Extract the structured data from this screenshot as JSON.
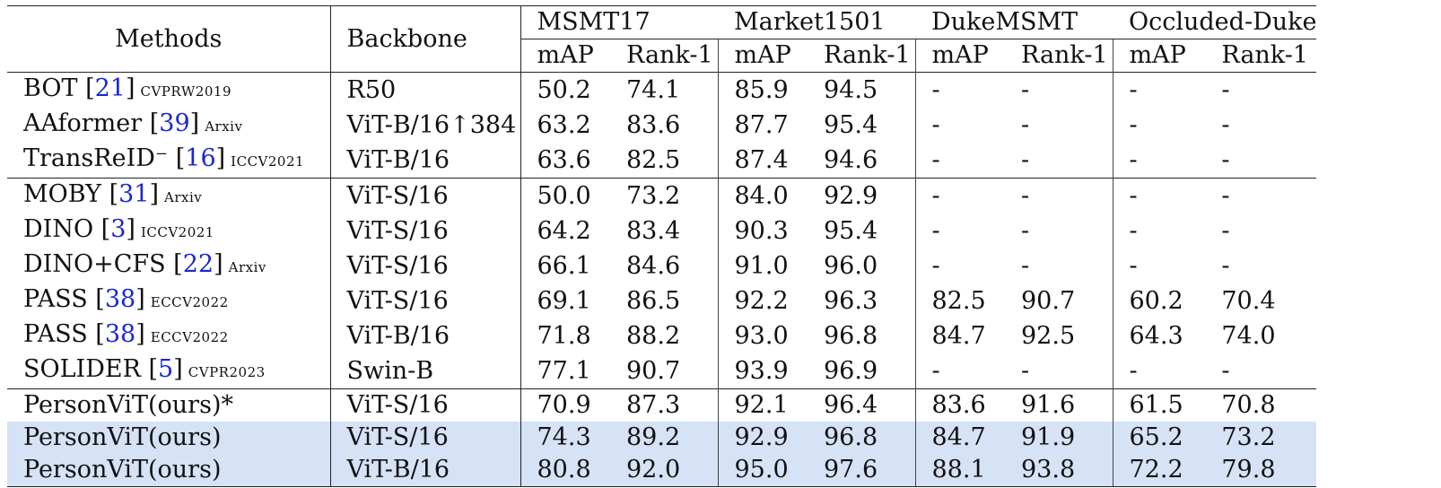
{
  "headers": {
    "methods": "Methods",
    "backbone": "Backbone",
    "datasets": [
      "MSMT17",
      "Market1501",
      "DukeMSMT",
      "Occluded-Duke"
    ],
    "metric1": "mAP",
    "metric2": "Rank-1"
  },
  "sections": [
    {
      "rows": [
        {
          "name": "BOT",
          "ref": "21",
          "venue": "CVPRW2019",
          "backbone": "R50",
          "values": [
            "50.2",
            "74.1",
            "85.9",
            "94.5",
            "-",
            "-",
            "-",
            "-"
          ],
          "highlight": false
        },
        {
          "name": "AAformer",
          "ref": "39",
          "venue": "Arxiv",
          "backbone": "ViT-B/16↑384",
          "values": [
            "63.2",
            "83.6",
            "87.7",
            "95.4",
            "-",
            "-",
            "-",
            "-"
          ],
          "highlight": false
        },
        {
          "name": "TransReID⁻",
          "ref": "16",
          "venue": "ICCV2021",
          "backbone": "ViT-B/16",
          "values": [
            "63.6",
            "82.5",
            "87.4",
            "94.6",
            "-",
            "-",
            "-",
            "-"
          ],
          "highlight": false
        }
      ]
    },
    {
      "rows": [
        {
          "name": "MOBY",
          "ref": "31",
          "venue": "Arxiv",
          "backbone": "ViT-S/16",
          "values": [
            "50.0",
            "73.2",
            "84.0",
            "92.9",
            "-",
            "-",
            "-",
            "-"
          ],
          "highlight": false
        },
        {
          "name": "DINO",
          "ref": "3",
          "venue": "ICCV2021",
          "backbone": "ViT-S/16",
          "values": [
            "64.2",
            "83.4",
            "90.3",
            "95.4",
            "-",
            "-",
            "-",
            "-"
          ],
          "highlight": false
        },
        {
          "name": "DINO+CFS",
          "ref": "22",
          "venue": "Arxiv",
          "backbone": "ViT-S/16",
          "values": [
            "66.1",
            "84.6",
            "91.0",
            "96.0",
            "-",
            "-",
            "-",
            "-"
          ],
          "highlight": false
        },
        {
          "name": "PASS",
          "ref": "38",
          "venue": "ECCV2022",
          "backbone": "ViT-S/16",
          "values": [
            "69.1",
            "86.5",
            "92.2",
            "96.3",
            "82.5",
            "90.7",
            "60.2",
            "70.4"
          ],
          "highlight": false
        },
        {
          "name": "PASS",
          "ref": "38",
          "venue": "ECCV2022",
          "backbone": "ViT-B/16",
          "values": [
            "71.8",
            "88.2",
            "93.0",
            "96.8",
            "84.7",
            "92.5",
            "64.3",
            "74.0"
          ],
          "highlight": false
        },
        {
          "name": "SOLIDER",
          "ref": "5",
          "venue": "CVPR2023",
          "backbone": "Swin-B",
          "values": [
            "77.1",
            "90.7",
            "93.9",
            "96.9",
            "-",
            "-",
            "-",
            "-"
          ],
          "highlight": false
        }
      ]
    },
    {
      "rows": [
        {
          "name": "PersonViT(ours)*",
          "ref": "",
          "venue": "",
          "backbone": "ViT-S/16",
          "values": [
            "70.9",
            "87.3",
            "92.1",
            "96.4",
            "83.6",
            "91.6",
            "61.5",
            "70.8"
          ],
          "highlight": false
        },
        {
          "name": "PersonViT(ours)",
          "ref": "",
          "venue": "",
          "backbone": "ViT-S/16",
          "values": [
            "74.3",
            "89.2",
            "92.9",
            "96.8",
            "84.7",
            "91.9",
            "65.2",
            "73.2"
          ],
          "highlight": true
        },
        {
          "name": "PersonViT(ours)",
          "ref": "",
          "venue": "",
          "backbone": "ViT-B/16",
          "values": [
            "80.8",
            "92.0",
            "95.0",
            "97.6",
            "88.1",
            "93.8",
            "72.2",
            "79.8"
          ],
          "highlight": true
        }
      ]
    }
  ],
  "colors": {
    "highlight": "#d6e2f5",
    "reference": "#1a28d6",
    "text": "#111111"
  }
}
